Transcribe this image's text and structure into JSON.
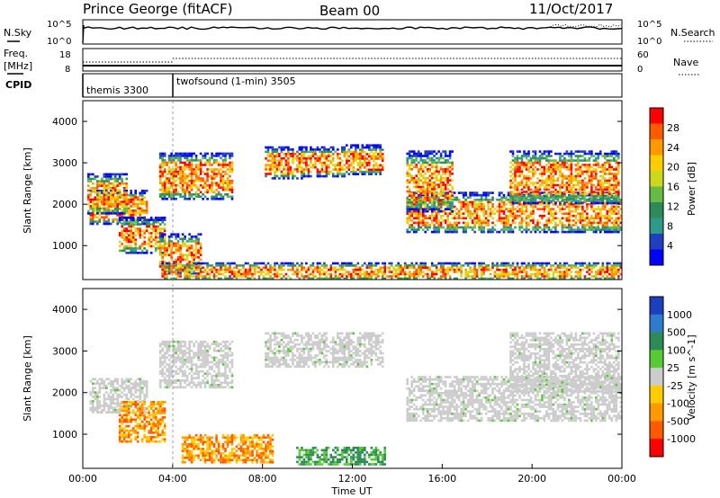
{
  "header": {
    "station": "Prince George (fitACF)",
    "beam": "Beam 00",
    "date": "11/Oct/2017"
  },
  "noise_panel": {
    "left_label": "N.Sky",
    "left_ticks": [
      "10^5",
      "10^0"
    ],
    "right_ticks": [
      "10^5",
      "10^0"
    ],
    "right_label": "N.Search"
  },
  "freq_panel": {
    "left_label_1": "Freq.",
    "left_label_2": "[MHz]",
    "left_ticks": [
      "18",
      "8"
    ],
    "right_ticks": [
      "60",
      "0"
    ],
    "right_label": "Nave"
  },
  "cpid_panel": {
    "label": "CPID",
    "programs": [
      {
        "name": "themis 3300",
        "start_hour": 0
      },
      {
        "name": "twofsound (1-min) 3505",
        "start_hour": 4
      }
    ]
  },
  "chart_data": [
    {
      "type": "heatmap",
      "panel": "power",
      "ylabel": "Slant Range [km]",
      "yticks": [
        "1000",
        "2000",
        "3000",
        "4000"
      ],
      "ylim": [
        180,
        4500
      ],
      "xlim": [
        0,
        24
      ],
      "colorbar": {
        "label": "Power [dB]",
        "ticks": [
          "28",
          "24",
          "20",
          "16",
          "12",
          "8",
          "4"
        ],
        "colors": [
          "#ff0000",
          "#ff5a00",
          "#ff9900",
          "#ffcc00",
          "#ccd81c",
          "#66bb44",
          "#2e8b57",
          "#2e9a8a",
          "#1f3fbf",
          "#0000ff"
        ]
      },
      "echo_bands": [
        {
          "x": [
            0.3,
            2.9
          ],
          "y": [
            1500,
            2350
          ]
        },
        {
          "x": [
            0.2,
            2.0
          ],
          "y": [
            1750,
            2750
          ]
        },
        {
          "x": [
            1.6,
            3.7
          ],
          "y": [
            800,
            1700
          ]
        },
        {
          "x": [
            3.4,
            5.3
          ],
          "y": [
            300,
            1300
          ]
        },
        {
          "x": [
            3.4,
            6.7
          ],
          "y": [
            2100,
            3250
          ]
        },
        {
          "x": [
            8.1,
            9.8
          ],
          "y": [
            2600,
            3400
          ]
        },
        {
          "x": [
            9.7,
            11.7
          ],
          "y": [
            2650,
            3400
          ]
        },
        {
          "x": [
            11.7,
            13.4
          ],
          "y": [
            2700,
            3450
          ]
        },
        {
          "x": [
            14.4,
            24.0
          ],
          "y": [
            1300,
            2300
          ]
        },
        {
          "x": [
            14.4,
            16.5
          ],
          "y": [
            1800,
            3300
          ]
        },
        {
          "x": [
            19.0,
            23.9
          ],
          "y": [
            2000,
            3300
          ]
        },
        {
          "x": [
            3.5,
            24.0
          ],
          "y": [
            180,
            600
          ]
        }
      ]
    },
    {
      "type": "heatmap",
      "panel": "velocity",
      "ylabel": "Slant Range [km]",
      "yticks": [
        "1000",
        "2000",
        "3000",
        "4000"
      ],
      "ylim": [
        180,
        4500
      ],
      "xlim": [
        0,
        24
      ],
      "xticks": [
        "00:00",
        "04:00",
        "08:00",
        "12:00",
        "16:00",
        "20:00",
        "00:00"
      ],
      "xlabel": "Time UT",
      "colorbar": {
        "label": "Velocity [m s^-1]",
        "ticks": [
          "1000",
          "500",
          "100",
          "25",
          "-25",
          "-100",
          "-500",
          "-1000"
        ],
        "colors": [
          "#1c3fbf",
          "#2f7bd0",
          "#2e8b57",
          "#55cc33",
          "#cccccc",
          "#ffcc00",
          "#ff9900",
          "#ff5a00",
          "#ff0000"
        ]
      },
      "echo_bands": [
        {
          "x": [
            0.3,
            2.9
          ],
          "y": [
            1500,
            2350
          ],
          "v": "gs"
        },
        {
          "x": [
            1.6,
            3.7
          ],
          "y": [
            800,
            1800
          ],
          "v": "neg"
        },
        {
          "x": [
            3.4,
            6.7
          ],
          "y": [
            2100,
            3250
          ],
          "v": "gs"
        },
        {
          "x": [
            8.1,
            13.4
          ],
          "y": [
            2600,
            3450
          ],
          "v": "gs"
        },
        {
          "x": [
            14.4,
            24.0
          ],
          "y": [
            1300,
            2400
          ],
          "v": "gs"
        },
        {
          "x": [
            19.0,
            23.9
          ],
          "y": [
            2000,
            3450
          ],
          "v": "gs"
        },
        {
          "x": [
            4.4,
            8.5
          ],
          "y": [
            300,
            1000
          ],
          "v": "neg"
        },
        {
          "x": [
            9.5,
            13.5
          ],
          "y": [
            250,
            700
          ],
          "v": "pos"
        }
      ]
    }
  ]
}
